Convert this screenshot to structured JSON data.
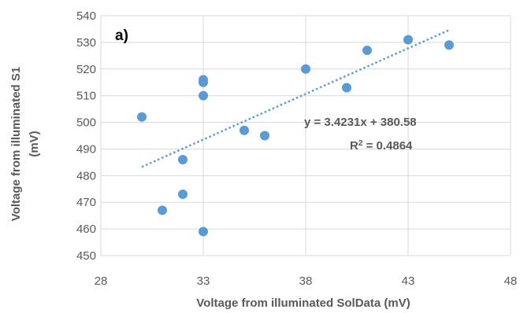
{
  "chart_data": {
    "type": "scatter",
    "panel_label": "a)",
    "xlabel": "Voltage from illuminated SolData (mV)",
    "ylabel_line1": "Voltage from illuminated S1",
    "ylabel_line2": "(mV)",
    "xlim": [
      28,
      48
    ],
    "ylim": [
      450,
      540
    ],
    "x_ticks": [
      "28",
      "33",
      "38",
      "43",
      "48"
    ],
    "y_ticks": [
      "450",
      "460",
      "470",
      "480",
      "490",
      "500",
      "510",
      "520",
      "530",
      "540"
    ],
    "grid": true,
    "points": [
      {
        "x": 30,
        "y": 502
      },
      {
        "x": 31,
        "y": 467
      },
      {
        "x": 32,
        "y": 486
      },
      {
        "x": 32,
        "y": 473
      },
      {
        "x": 33,
        "y": 516
      },
      {
        "x": 33,
        "y": 515
      },
      {
        "x": 33,
        "y": 510
      },
      {
        "x": 33,
        "y": 459
      },
      {
        "x": 35,
        "y": 497
      },
      {
        "x": 36,
        "y": 495
      },
      {
        "x": 38,
        "y": 520
      },
      {
        "x": 40,
        "y": 513
      },
      {
        "x": 41,
        "y": 527
      },
      {
        "x": 43,
        "y": 531
      },
      {
        "x": 45,
        "y": 529
      }
    ],
    "trendline": {
      "slope": 3.4231,
      "intercept": 380.58,
      "x_start": 30,
      "x_end": 45,
      "equation": "y = 3.4231x + 380.58",
      "r2_prefix": "R",
      "r2_sup": "2",
      "r2_value": " = 0.4864"
    },
    "colors": {
      "points": "#5b9bd5",
      "trendline": "#5b9bd5",
      "grid": "#d9d9d9",
      "text": "#595959"
    }
  }
}
